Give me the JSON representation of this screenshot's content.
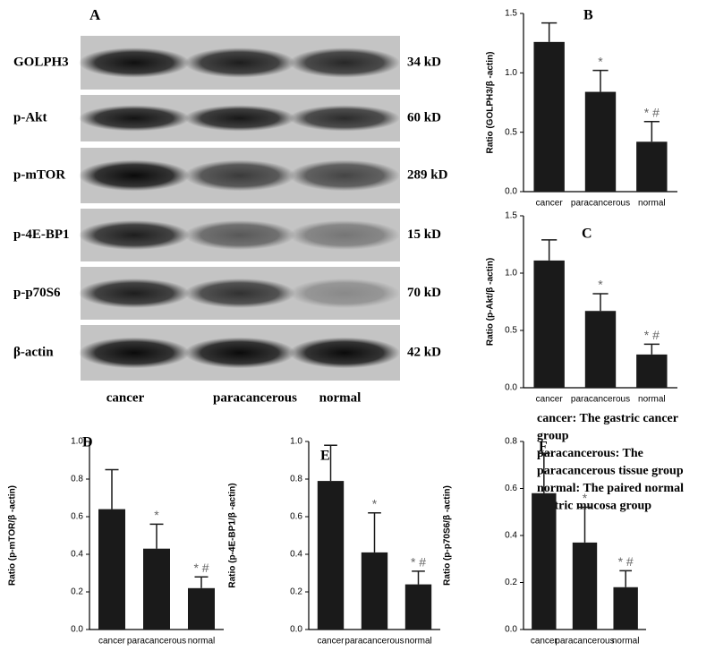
{
  "blot": {
    "title": "A",
    "proteins": [
      "GOLPH3",
      "p-Akt",
      "p-mTOR",
      "p-4E-BP1",
      "p-p70S6",
      "β-actin"
    ],
    "sizes": [
      "34 kD",
      "60 kD",
      "289 kD",
      "15 kD",
      "70 kD",
      "42 kD"
    ],
    "lanes": [
      "cancer",
      "paracancerous",
      "normal"
    ]
  },
  "notes": [
    "cancer: The gastric cancer",
    "group",
    "paracancerous: The",
    "paracancerous tissue group",
    "normal: The paired normal",
    "gastric mucosa group"
  ],
  "chart_data": [
    {
      "type": "bar",
      "title": "B",
      "y_label": "Ratio (GOLPH3/β -actin)",
      "categories": [
        "cancer",
        "paracancerous",
        "normal"
      ],
      "values": [
        1.26,
        0.84,
        0.42
      ],
      "errors": [
        0.16,
        0.18,
        0.17
      ],
      "annotations": [
        null,
        "*",
        "* #"
      ],
      "color": "#1a1a1a",
      "ylim": [
        0,
        1.5
      ],
      "yticks": [
        {
          "value": 0,
          "label": "0.0"
        },
        0.5,
        {
          "value": 1,
          "label": "1.0"
        },
        1.5
      ]
    },
    {
      "type": "bar",
      "title": "C",
      "y_label": "Ratio (p-Akt/β -actin)",
      "categories": [
        "cancer",
        "paracancerous",
        "normal"
      ],
      "values": [
        1.11,
        0.67,
        0.29
      ],
      "errors": [
        0.18,
        0.15,
        0.09
      ],
      "annotations": [
        null,
        "*",
        "* #"
      ],
      "color": "#1a1a1a",
      "ylim": [
        0,
        1.5
      ],
      "yticks": [
        {
          "value": 0,
          "label": "0.0"
        },
        0.5,
        {
          "value": 1,
          "label": "1.0"
        },
        1.5
      ]
    },
    {
      "type": "bar",
      "title": "D",
      "y_label": "Ratio (p-mTOR/β -actin)",
      "categories": [
        "cancer",
        "paracancerous",
        "normal"
      ],
      "values": [
        0.64,
        0.43,
        0.22
      ],
      "errors": [
        0.21,
        0.13,
        0.06
      ],
      "annotations": [
        null,
        "*",
        "* #"
      ],
      "color": "#1a1a1a",
      "ylim": [
        0,
        1
      ],
      "yticks": [
        {
          "value": 0,
          "label": "0.0"
        },
        0.2,
        0.4,
        0.6,
        0.8,
        {
          "value": 1,
          "label": "1.0"
        }
      ]
    },
    {
      "type": "bar",
      "title": "E",
      "y_label": "Ratio (p-4E-BP1/β -actin)",
      "categories": [
        "cancer",
        "paracancerous",
        "normal"
      ],
      "values": [
        0.79,
        0.41,
        0.24
      ],
      "errors": [
        0.19,
        0.21,
        0.07
      ],
      "annotations": [
        null,
        "*",
        "* #"
      ],
      "color": "#1a1a1a",
      "ylim": [
        0,
        1
      ],
      "yticks": [
        {
          "value": 0,
          "label": "0.0"
        },
        0.2,
        0.4,
        0.6,
        0.8,
        {
          "value": 1,
          "label": "1.0"
        }
      ]
    },
    {
      "type": "bar",
      "title": "F",
      "y_label": "Ratio (p-p70S6/β -actin)",
      "categories": [
        "cancer",
        "paracancerous",
        "normal"
      ],
      "values": [
        0.58,
        0.37,
        0.18
      ],
      "errors": [
        0.17,
        0.15,
        0.07
      ],
      "annotations": [
        null,
        "*",
        "* #"
      ],
      "color": "#1a1a1a",
      "ylim": [
        0,
        0.8
      ],
      "yticks": [
        {
          "value": 0,
          "label": "0.0"
        },
        0.2,
        0.4,
        0.6,
        0.8
      ]
    }
  ]
}
